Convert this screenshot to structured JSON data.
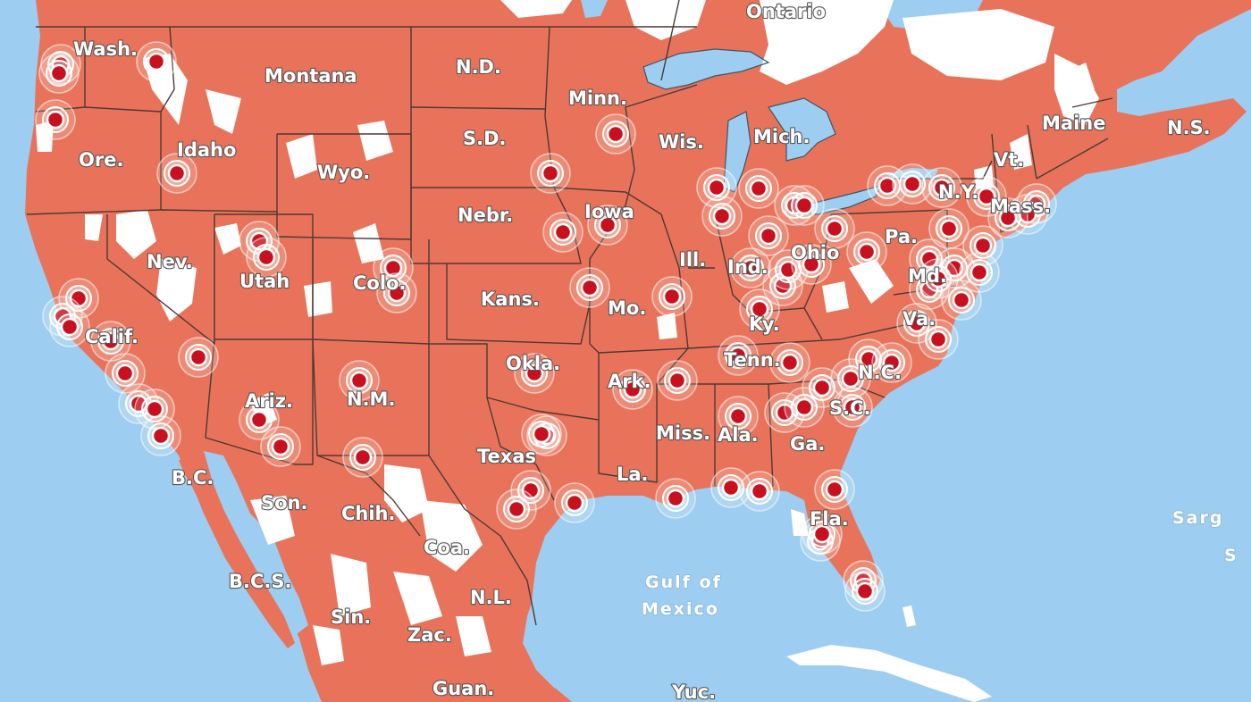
{
  "colors": {
    "ocean": "#9dcdf0",
    "coverage": "#e8735a",
    "no_coverage": "#ffffff",
    "marker_fill": "#c8101e",
    "marker_halo": "#ffffff"
  },
  "map": {
    "labels": {
      "ontario": "Ontario",
      "wash": "Wash.",
      "montana": "Montana",
      "nd": "N.D.",
      "minn": "Minn.",
      "sd": "S.D.",
      "wis": "Wis.",
      "mich": "Mich.",
      "maine": "Maine",
      "ns": "N.S.",
      "vt": "Vt.",
      "ore": "Ore.",
      "idaho": "Idaho",
      "wyo": "Wyo.",
      "ny": "N.Y.",
      "mass": "Mass.",
      "nebr": "Nebr.",
      "iowa": "Iowa",
      "pa": "Pa.",
      "ohio": "Ohio",
      "nev": "Nev.",
      "utah": "Utah",
      "colo": "Colo.",
      "ill": "Ill.",
      "ind": "Ind.",
      "md": "Md.",
      "kans": "Kans.",
      "mo": "Mo.",
      "ky": "Ky.",
      "va": "Va.",
      "calif": "Calif.",
      "tenn": "Tenn.",
      "okla": "Okla.",
      "ark": "Ark.",
      "nc": "N.C.",
      "ariz": "Ariz.",
      "nm": "N.M.",
      "sc": "S.C.",
      "miss": "Miss.",
      "ala": "Ala.",
      "ga": "Ga.",
      "texas": "Texas",
      "bc": "B.C.",
      "la": "La.",
      "son": "Son.",
      "chih": "Chih.",
      "fla": "Fla.",
      "coa": "Coa.",
      "bcs": "B.C.S.",
      "nl": "N.L.",
      "sin": "Sin.",
      "zac": "Zac.",
      "guan": "Guan.",
      "yuc": "Yuc."
    },
    "sea_labels": {
      "gulf_line1": "Gulf of",
      "gulf_line2": "Mexico",
      "sarg_line1": "Sarg",
      "sarg_line2": "S"
    }
  }
}
